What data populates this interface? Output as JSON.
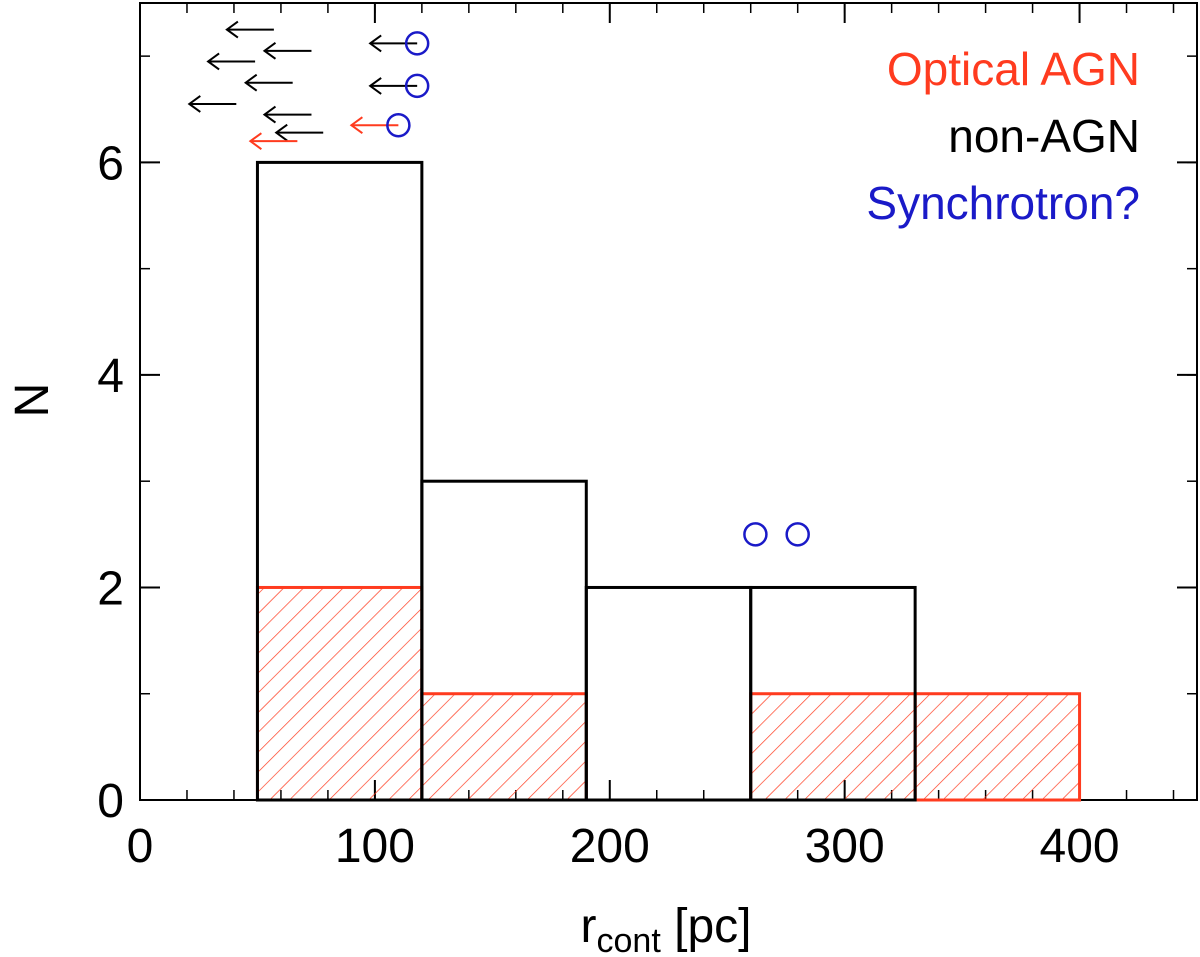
{
  "chart_data": {
    "type": "bar",
    "title": "",
    "xlabel": "r",
    "xlabel_subscript": "cont",
    "xlabel_unit": " [pc]",
    "ylabel": "N",
    "xlim": [
      0,
      450
    ],
    "ylim": [
      0,
      7.5
    ],
    "x_major_ticks": [
      0,
      100,
      200,
      300,
      400
    ],
    "x_tick_labels": [
      "0",
      "100",
      "200",
      "300",
      "400"
    ],
    "x_minor_step": 20,
    "y_major_ticks": [
      0,
      2,
      4,
      6
    ],
    "y_tick_labels": [
      "0",
      "2",
      "4",
      "6"
    ],
    "y_minor_step": 1,
    "bins": [
      [
        50,
        120
      ],
      [
        120,
        190
      ],
      [
        190,
        260
      ],
      [
        260,
        330
      ],
      [
        330,
        400
      ]
    ],
    "series": [
      {
        "name": "non-AGN",
        "color": "#000000",
        "style": "outline",
        "values": [
          6,
          3,
          2,
          2,
          0
        ]
      },
      {
        "name": "Optical AGN",
        "color": "#ff3b1f",
        "style": "hatched",
        "values": [
          2,
          1,
          0,
          1,
          1
        ]
      }
    ],
    "upper_limits": [
      {
        "x": 57,
        "y": 7.25,
        "color": "#000000"
      },
      {
        "x": 73,
        "y": 7.05,
        "color": "#000000"
      },
      {
        "x": 49,
        "y": 6.95,
        "color": "#000000"
      },
      {
        "x": 65,
        "y": 6.75,
        "color": "#000000"
      },
      {
        "x": 41,
        "y": 6.55,
        "color": "#000000"
      },
      {
        "x": 73,
        "y": 6.45,
        "color": "#000000"
      },
      {
        "x": 78,
        "y": 6.28,
        "color": "#000000"
      },
      {
        "x": 67,
        "y": 6.2,
        "color": "#ff3b1f"
      },
      {
        "x": 118,
        "y": 7.12,
        "color": "#000000"
      },
      {
        "x": 118,
        "y": 6.72,
        "color": "#000000"
      },
      {
        "x": 110,
        "y": 6.35,
        "color": "#ff3b1f"
      }
    ],
    "synchrotron_markers": [
      {
        "x": 118,
        "y": 7.12
      },
      {
        "x": 118,
        "y": 6.72
      },
      {
        "x": 110,
        "y": 6.35
      },
      {
        "x": 262,
        "y": 2.5
      },
      {
        "x": 280,
        "y": 2.5
      }
    ],
    "legend": {
      "position": "top-right",
      "entries": [
        {
          "label": "Optical AGN",
          "color": "#ff3b1f"
        },
        {
          "label": "non-AGN",
          "color": "#000000"
        },
        {
          "label": "Synchrotron?",
          "color": "#1a1ac8"
        }
      ]
    }
  }
}
